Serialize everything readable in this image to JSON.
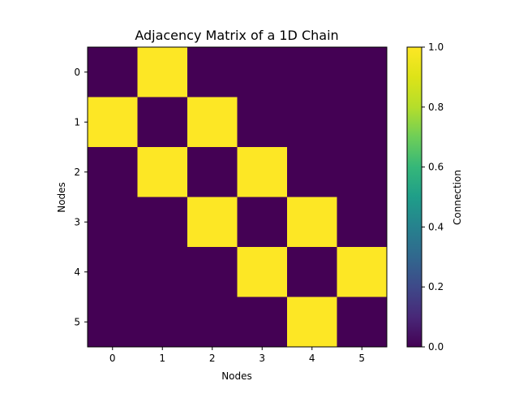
{
  "chart_data": {
    "type": "heatmap",
    "title": "Adjacency Matrix of a 1D Chain",
    "xlabel": "Nodes",
    "ylabel": "Nodes",
    "x_categories": [
      "0",
      "1",
      "2",
      "3",
      "4",
      "5"
    ],
    "y_categories": [
      "0",
      "1",
      "2",
      "3",
      "4",
      "5"
    ],
    "values": [
      [
        0,
        1,
        0,
        0,
        0,
        0
      ],
      [
        1,
        0,
        1,
        0,
        0,
        0
      ],
      [
        0,
        1,
        0,
        1,
        0,
        0
      ],
      [
        0,
        0,
        1,
        0,
        1,
        0
      ],
      [
        0,
        0,
        0,
        1,
        0,
        1
      ],
      [
        0,
        0,
        0,
        0,
        1,
        0
      ]
    ],
    "colormap": "viridis",
    "vmin": 0.0,
    "vmax": 1.0,
    "colorbar": {
      "label": "Connection",
      "ticks": [
        "0.0",
        "0.2",
        "0.4",
        "0.6",
        "0.8",
        "1.0"
      ]
    },
    "grid": false,
    "colors": {
      "low": "#440154",
      "high": "#fde725"
    }
  }
}
